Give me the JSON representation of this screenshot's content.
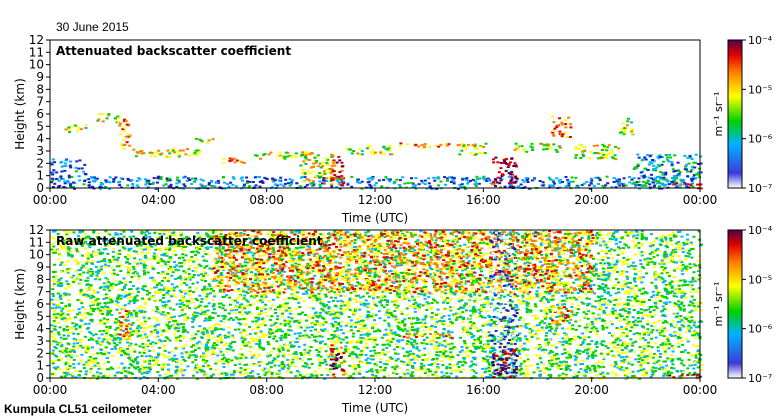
{
  "date": "30 June 2015",
  "footer": "Kumpula CL51 ceilometer",
  "colorbar": {
    "unit": "m⁻¹ sr⁻¹",
    "ticks": [
      "10⁻⁷",
      "10⁻⁶",
      "10⁻⁵",
      "10⁻⁴"
    ],
    "colors": [
      "#ffffff",
      "#1e1ec8",
      "#00b4ff",
      "#00d000",
      "#ffff00",
      "#ff8000",
      "#e00000",
      "#500050"
    ]
  },
  "chart_data": [
    {
      "type": "heatmap",
      "title": "Attenuated backscatter coefficient",
      "xlabel": "Time (UTC)",
      "ylabel": "Height (km)",
      "xlim": [
        "00:00",
        "24:00"
      ],
      "ylim": [
        0,
        12
      ],
      "x_ticks": [
        "00:00",
        "04:00",
        "08:00",
        "12:00",
        "16:00",
        "20:00",
        "00:00"
      ],
      "y_ticks": [
        "0",
        "1",
        "2",
        "3",
        "4",
        "5",
        "6",
        "7",
        "8",
        "9",
        "10",
        "11",
        "12"
      ],
      "color_scale": "log",
      "value_range": [
        1e-07,
        0.0001
      ],
      "features": [
        {
          "t0": 0.0,
          "t1": 24.0,
          "h0": 0.0,
          "h1": 1.0,
          "level": 0.25
        },
        {
          "t0": 0.0,
          "t1": 1.3,
          "h0": 1.0,
          "h1": 2.4,
          "level": 0.2
        },
        {
          "t0": 0.3,
          "t1": 1.3,
          "h0": 4.6,
          "h1": 5.2,
          "level": 0.5
        },
        {
          "t0": 1.7,
          "t1": 2.5,
          "h0": 5.4,
          "h1": 6.1,
          "level": 0.55
        },
        {
          "t0": 2.5,
          "t1": 2.9,
          "h0": 3.0,
          "h1": 5.8,
          "level": 0.7
        },
        {
          "t0": 2.8,
          "t1": 5.5,
          "h0": 2.6,
          "h1": 3.3,
          "level": 0.6
        },
        {
          "t0": 5.3,
          "t1": 6.0,
          "h0": 3.7,
          "h1": 4.1,
          "level": 0.55
        },
        {
          "t0": 6.0,
          "t1": 7.3,
          "h0": 2.1,
          "h1": 2.5,
          "level": 0.75
        },
        {
          "t0": 7.5,
          "t1": 9.5,
          "h0": 2.4,
          "h1": 3.0,
          "level": 0.55
        },
        {
          "t0": 9.2,
          "t1": 10.5,
          "h0": 0.5,
          "h1": 3.0,
          "level": 0.6
        },
        {
          "t0": 10.3,
          "t1": 10.8,
          "h0": 0.1,
          "h1": 2.8,
          "level": 0.85
        },
        {
          "t0": 10.8,
          "t1": 12.8,
          "h0": 2.8,
          "h1": 3.5,
          "level": 0.5
        },
        {
          "t0": 12.8,
          "t1": 14.8,
          "h0": 3.3,
          "h1": 3.7,
          "level": 0.7
        },
        {
          "t0": 15.0,
          "t1": 16.1,
          "h0": 2.7,
          "h1": 3.7,
          "level": 0.6
        },
        {
          "t0": 16.3,
          "t1": 17.2,
          "h0": 0.1,
          "h1": 2.6,
          "level": 0.95
        },
        {
          "t0": 17.0,
          "t1": 18.8,
          "h0": 3.0,
          "h1": 3.7,
          "level": 0.55
        },
        {
          "t0": 18.5,
          "t1": 19.2,
          "h0": 4.2,
          "h1": 6.0,
          "level": 0.7
        },
        {
          "t0": 19.3,
          "t1": 21.0,
          "h0": 2.4,
          "h1": 3.6,
          "level": 0.55
        },
        {
          "t0": 21.0,
          "t1": 21.5,
          "h0": 4.4,
          "h1": 5.8,
          "level": 0.5
        },
        {
          "t0": 21.5,
          "t1": 24.0,
          "h0": 0.2,
          "h1": 2.8,
          "level": 0.3
        },
        {
          "t0": 22.8,
          "t1": 24.0,
          "h0": 0.0,
          "h1": 0.4,
          "level": 0.85
        }
      ]
    },
    {
      "type": "heatmap",
      "title": "Raw attenuated backscatter coefficient",
      "xlabel": "Time (UTC)",
      "ylabel": "Height (km)",
      "xlim": [
        "00:00",
        "24:00"
      ],
      "ylim": [
        0,
        12
      ],
      "x_ticks": [
        "00:00",
        "04:00",
        "08:00",
        "12:00",
        "16:00",
        "20:00",
        "00:00"
      ],
      "y_ticks": [
        "0",
        "1",
        "2",
        "3",
        "4",
        "5",
        "6",
        "7",
        "8",
        "9",
        "10",
        "11",
        "12"
      ],
      "color_scale": "log",
      "value_range": [
        1e-07,
        0.0001
      ],
      "features": [
        {
          "t0": 0.0,
          "t1": 24.0,
          "h0": 0.0,
          "h1": 12.0,
          "level": 0.45
        },
        {
          "t0": 6.0,
          "t1": 20.0,
          "h0": 7.0,
          "h1": 12.0,
          "level": 0.7
        },
        {
          "t0": 16.2,
          "t1": 17.2,
          "h0": 0.0,
          "h1": 12.0,
          "level": 0.1
        },
        {
          "t0": 16.3,
          "t1": 17.2,
          "h0": 0.1,
          "h1": 2.6,
          "level": 0.95
        },
        {
          "t0": 2.5,
          "t1": 2.9,
          "h0": 3.0,
          "h1": 5.8,
          "level": 0.7
        },
        {
          "t0": 10.3,
          "t1": 10.8,
          "h0": 0.1,
          "h1": 2.8,
          "level": 0.85
        },
        {
          "t0": 18.5,
          "t1": 19.2,
          "h0": 4.2,
          "h1": 6.0,
          "level": 0.75
        },
        {
          "t0": 12.8,
          "t1": 14.8,
          "h0": 3.3,
          "h1": 3.7,
          "level": 0.7
        },
        {
          "t0": 22.8,
          "t1": 24.0,
          "h0": 0.0,
          "h1": 0.4,
          "level": 0.85
        }
      ]
    }
  ]
}
